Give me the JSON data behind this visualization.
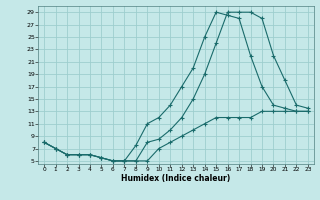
{
  "xlabel": "Humidex (Indice chaleur)",
  "bg_color": "#c5e8e8",
  "grid_color": "#9ecece",
  "line_color": "#1a6b6b",
  "xlim": [
    -0.5,
    23.5
  ],
  "ylim": [
    4.5,
    30
  ],
  "yticks": [
    5,
    7,
    9,
    11,
    13,
    15,
    17,
    19,
    21,
    23,
    25,
    27,
    29
  ],
  "xticks": [
    0,
    1,
    2,
    3,
    4,
    5,
    6,
    7,
    8,
    9,
    10,
    11,
    12,
    13,
    14,
    15,
    16,
    17,
    18,
    19,
    20,
    21,
    22,
    23
  ],
  "line1_x": [
    0,
    1,
    2,
    3,
    4,
    5,
    6,
    7,
    8,
    9,
    10,
    11,
    12,
    13,
    14,
    15,
    16,
    17,
    18,
    19,
    20,
    21,
    22,
    23
  ],
  "line1_y": [
    8,
    7,
    6,
    6,
    6,
    5.5,
    5,
    5,
    5,
    5,
    7,
    8,
    9,
    10,
    11,
    12,
    12,
    12,
    12,
    13,
    13,
    13,
    13,
    13
  ],
  "line2_x": [
    0,
    1,
    2,
    3,
    4,
    5,
    6,
    7,
    8,
    9,
    10,
    11,
    12,
    13,
    14,
    15,
    16,
    17,
    18,
    19,
    20,
    21,
    22,
    23
  ],
  "line2_y": [
    8,
    7,
    6,
    6,
    6,
    5.5,
    5,
    5,
    7.5,
    11,
    12,
    14,
    17,
    20,
    25,
    29,
    28.5,
    28,
    22,
    17,
    14,
    13.5,
    13,
    13
  ],
  "line3_x": [
    0,
    1,
    2,
    3,
    4,
    5,
    6,
    7,
    8,
    9,
    10,
    11,
    12,
    13,
    14,
    15,
    16,
    17,
    18,
    19,
    20,
    21,
    22,
    23
  ],
  "line3_y": [
    8,
    7,
    6,
    6,
    6,
    5.5,
    5,
    5,
    5,
    8,
    8.5,
    10,
    12,
    15,
    19,
    24,
    29,
    29,
    29,
    28,
    22,
    18,
    14,
    13.5
  ]
}
